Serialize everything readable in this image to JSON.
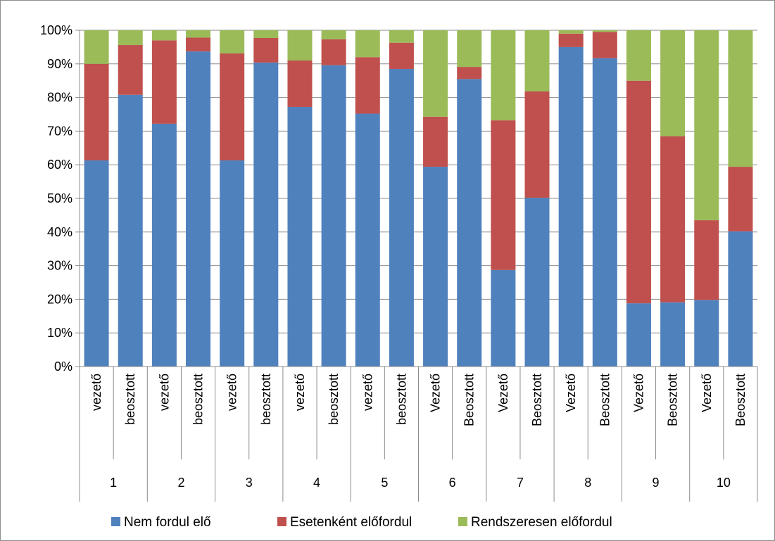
{
  "chart_data": {
    "type": "bar",
    "stacked": true,
    "percent_stacked": true,
    "groups": [
      "1",
      "2",
      "3",
      "4",
      "5",
      "6",
      "7",
      "8",
      "9",
      "10"
    ],
    "categories": [
      "vezető",
      "beosztott",
      "vezető",
      "beosztott",
      "vezető",
      "beosztott",
      "vezető",
      "beosztott",
      "vezető",
      "beosztott",
      "Vezető",
      "Beosztott",
      "Vezető",
      "Beosztott",
      "Vezető",
      "Beosztott",
      "Vezető",
      "Beosztott",
      "Vezető",
      "Beosztott"
    ],
    "series": [
      {
        "name": "Nem fordul elő",
        "color": "#4f81bd",
        "values": [
          61.3,
          80.8,
          72.2,
          93.7,
          61.3,
          90.4,
          77.2,
          89.6,
          75.2,
          88.5,
          59.4,
          85.5,
          28.7,
          50.2,
          95.0,
          91.7,
          18.8,
          19.1,
          19.8,
          40.2
        ]
      },
      {
        "name": "Esetenként előfordul",
        "color": "#c0504d",
        "values": [
          28.7,
          14.8,
          24.8,
          4.1,
          31.8,
          7.3,
          13.8,
          7.7,
          16.8,
          7.8,
          14.9,
          3.6,
          44.5,
          31.6,
          4.0,
          7.8,
          66.2,
          49.4,
          23.7,
          19.2
        ]
      },
      {
        "name": "Rendszeresen előfordul",
        "color": "#9bbb59",
        "values": [
          10.0,
          4.4,
          3.0,
          2.2,
          6.9,
          2.3,
          9.0,
          2.7,
          8.0,
          3.7,
          25.7,
          10.9,
          26.8,
          18.2,
          1.0,
          0.5,
          15.0,
          31.5,
          56.5,
          40.6
        ]
      }
    ],
    "y_ticks": [
      "0%",
      "10%",
      "20%",
      "30%",
      "40%",
      "50%",
      "60%",
      "70%",
      "80%",
      "90%",
      "100%"
    ],
    "ylim": [
      0,
      100
    ],
    "grid": true,
    "legend_position": "bottom"
  }
}
